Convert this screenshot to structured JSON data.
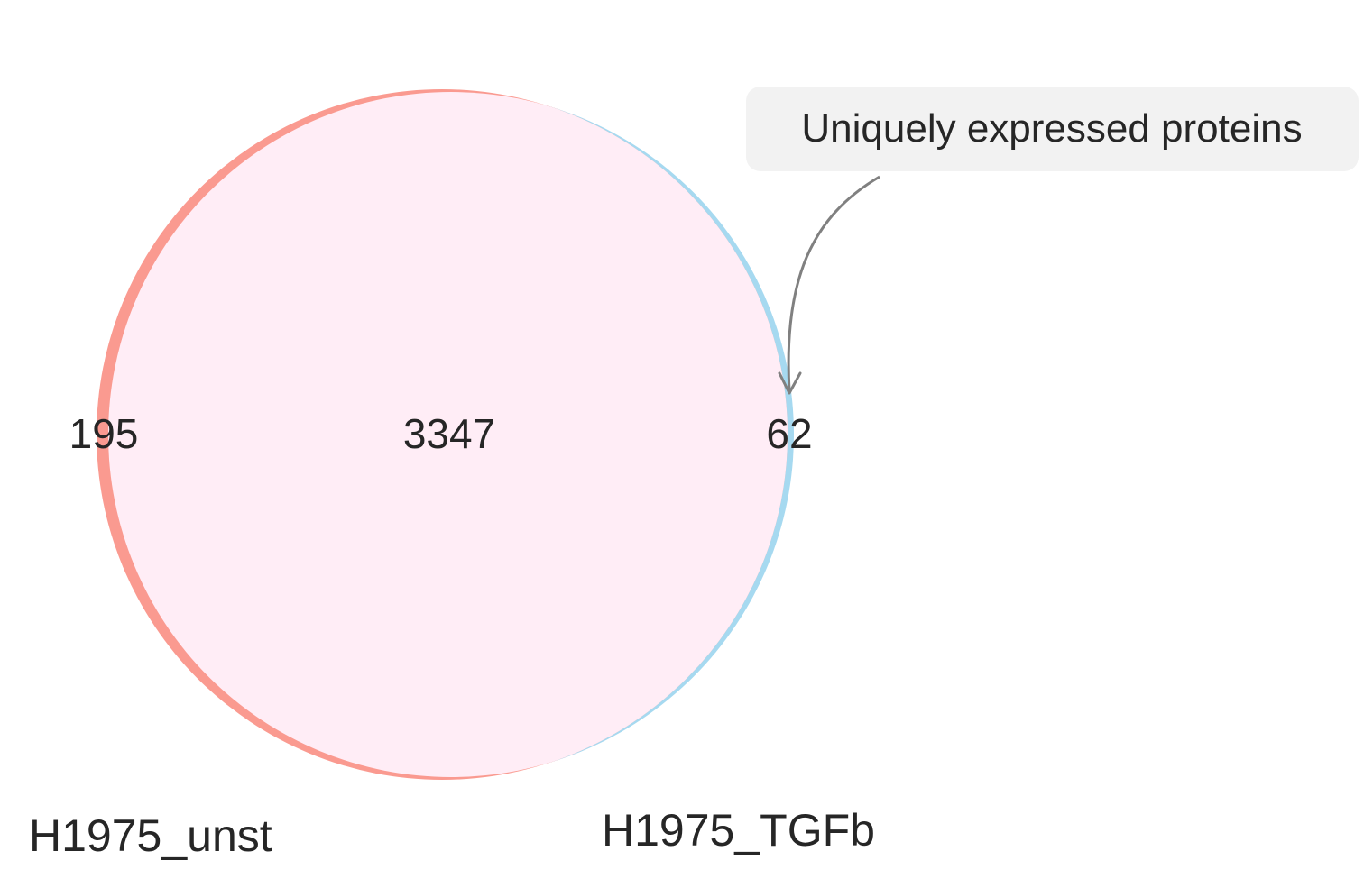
{
  "sets": [
    {
      "name": "H1975_unst",
      "color": "#fa9a90"
    },
    {
      "name": "H1975_TGFb",
      "color": "#a6d9f0"
    }
  ],
  "overlap_color": "#ffedf6",
  "counts": {
    "only_unst": "195",
    "intersection": "3347",
    "only_tgfb": "62"
  },
  "annotation": {
    "text": "Uniquely expressed proteins",
    "box_color": "#f2f2f2",
    "arrow_color": "#808080"
  }
}
